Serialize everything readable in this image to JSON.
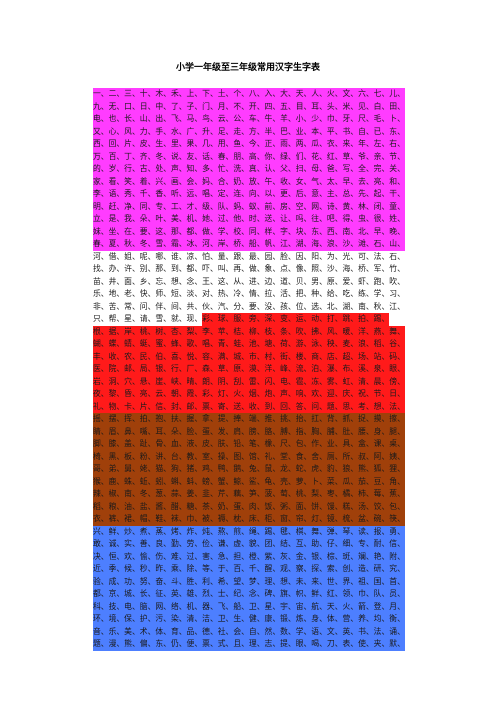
{
  "header": {
    "title": "小学一年级至三年级常用汉字生字表"
  },
  "rows": [
    [
      {
        "color": "#ff3cff",
        "text": "一、二、三、十、木、禾、上、下、土、个、八、入、大、天、人、火、文、六、七、儿、"
      }
    ],
    [
      {
        "color": "#ff3cff",
        "text": "九、无、口、日、中、了、子、门、月、不、开、四、五、目、耳、头、米、见、白、田、"
      }
    ],
    [
      {
        "color": "#ff3cff",
        "text": "电、也、长、山、出、飞、马、鸟、云、公、车、牛、羊、小、少、巾、牙、尺、毛、卜、"
      }
    ],
    [
      {
        "color": "#ff3cff",
        "text": "又、心、风、力、手、水、广、升、足、走、方、半、巴、业、本、平、书、自、已、东、"
      }
    ],
    [
      {
        "color": "#ff3cff",
        "text": "西、回、片、皮、生、里、果、几、用、鱼、今、正、雨、两、瓜、衣、来、年、左、右、"
      }
    ],
    [
      {
        "color": "#ff3cff",
        "text": "万、百、丁、齐、冬、说、友、话、春、朋、高、你、绿、们、花、红、草、爷、亲、节、"
      }
    ],
    [
      {
        "color": "#ff3cff",
        "text": "的、岁、行、古、处、声、知、多、忙、洗、真、认、父、扫、母、爸、写、全、完、关、"
      }
    ],
    [
      {
        "color": "#ff3cff",
        "text": "家、看、笑、着、兴、画、会、妈、合、奶、放、午、收、女、气、太、早、去、亮、和、"
      }
    ],
    [
      {
        "color": "#ff3cff",
        "text": "李、语、秀、千、香、听、远、唱、定、连、向、以、更、后、意、主、总、先、起、干、"
      }
    ],
    [
      {
        "color": "#ff3cff",
        "text": "明、赶、净、同、专、工、才、级、队、蚂、蚁、前、房、空、网、诗、黄、林、闭、童、"
      }
    ],
    [
      {
        "color": "#ff3cff",
        "text": "立、是、我、朵、叶、美、机、她、过、他、时、送、让、吗、往、吧、得、虫、很、姓、"
      }
    ],
    [
      {
        "color": "#ff3cff",
        "text": "妹、坐、在、要、这、那、都、做、学、校、同、样、字、块、东、西、南、北、早、晚、"
      }
    ],
    [
      {
        "color": "#ff3cff",
        "text": "春、夏、秋、冬、雪、霜、冰、河、岸、桥、船、帆、江、湖、海、浪、沙、滩、石、山、"
      }
    ],
    [
      {
        "color": "#ffffff",
        "text": "河、借、姐、呢、哪、谁、凉、怕、量、跟、最、园、脸、因、阳、为、光、可、法、石、"
      }
    ],
    [
      {
        "color": "#ffffff",
        "text": "找、办、许、别、那、到、都、吓、叫、再、做、象、点、像、照、沙、海、桥、军、竹、"
      }
    ],
    [
      {
        "color": "#ffffff",
        "text": "苗、井、面、乡、忘、想、念、王、这、从、进、边、道、贝、男、原、爱、虾、跑、吹、"
      }
    ],
    [
      {
        "color": "#ffffff",
        "text": "乐、地、老、快、师、短、淡、对、热、冷、情、拉、活、把、种、给、吃、练、学、习、"
      }
    ],
    [
      {
        "color": "#ffffff",
        "text": "非、苦、常、问、伴、间、共、伙、汽、分、要、没、孩、位、选、北、湖、南、秋、江、"
      }
    ],
    [
      {
        "color": "#ffffff",
        "text": "只、帮、星、请、雪、就、现、"
      },
      {
        "color": "#ff1a1a",
        "text": "彩、球、服、旁、深、变、运、动、打、跳、拍、踢、"
      }
    ],
    [
      {
        "color": "#ff1a1a",
        "text": "根、据、岸、桃、树、杏、梨、李、苹、桔、柳、枝、条、吹、拂、风、暖、洋、燕、舞、"
      }
    ],
    [
      {
        "color": "#ff1a1a",
        "text": "蝴、蝶、蜻、蜓、蜜、蜂、歌、唱、青、蛙、池、塘、荷、游、泳、秧、麦、浪、稻、谷、"
      }
    ],
    [
      {
        "color": "#ff1a1a",
        "text": "丰、收、农、民、伯、喜、悦、容、满、城、市、村、街、楼、商、店、超、场、站、码、"
      }
    ],
    [
      {
        "color": "#ff1a1a",
        "text": "医、院、邮、局、银、行、厂、森、草、原、漠、洋、峰、流、泊、瀑、布、溪、泉、眼、"
      }
    ],
    [
      {
        "color": "#ff1a1a",
        "text": "岩、洞、穴、悬、崖、峡、晴、朗、阴、刮、雷、闪、电、雹、冻、雾、虹、清、晨、傍、"
      }
    ],
    [
      {
        "color": "#ff1a1a",
        "text": "夜、黎、昏、亮、云、朝、霞、彩、灯、火、烟、炮、声、响、欢、迎、庆、祝、节、日、"
      }
    ],
    [
      {
        "color": "#ff1a1a",
        "text": "礼、物、卡、片、信、封、邮、票、寄、送、收、到、回、答、问、题、思、考、想、法、"
      }
    ],
    [
      {
        "color": "#a0400a",
        "text": "摇、摆、挥、拍、抱、扶、握、拿、提、捧、端、推、挑、抬、扛、背、抓、捉、摸、擦、"
      }
    ],
    [
      {
        "color": "#a0400a",
        "text": "睛、眉、鼻、嘴、耳、朵、脸、蛋、发、肩、膀、胳、膊、指、胸、脯、肚、腰、身、腿、"
      }
    ],
    [
      {
        "color": "#a0400a",
        "text": "脚、膝、盖、趾、骨、血、液、皮、肤、铅、笔、橡、尺、包、作、业、具、盒、课、桌、"
      }
    ],
    [
      {
        "color": "#a0400a",
        "text": "椅、黑、板、粉、讲、台、教、室、操、图、馆、礼、堂、食、舍、厕、所、叔、阿、姨、"
      }
    ],
    [
      {
        "color": "#a0400a",
        "text": "哥、弟、舅、姥、猫、狗、猪、鸡、鸭、鹅、兔、鼠、龙、蛇、虎、豹、狼、熊、狐、狸、"
      }
    ],
    [
      {
        "color": "#a0400a",
        "text": "猴、鹿、蛛、蚯、蚓、蝌、蚪、螃、蟹、鲸、鲨、龟、壳、萝、卜、菜、瓜、茄、豆、角、"
      }
    ],
    [
      {
        "color": "#a0400a",
        "text": "辣、椒、南、冬、葱、蒜、姜、韭、芹、藕、笋、菠、萄、桃、梨、枣、橘、柿、莓、蕉、"
      }
    ],
    [
      {
        "color": "#a0400a",
        "text": "稻、粮、油、盐、酱、醋、糖、茶、奶、蛋、肉、饭、粥、面、饼、馒、糕、汤、饺、包、"
      }
    ],
    [
      {
        "color": "#a0400a",
        "text": "衣、裤、裙、帽、鞋、袜、巾、被、褥、枕、床、柜、窗、帘、灯、镜、梳、盆、碗、筷、"
      }
    ],
    [
      {
        "color": "#4d7fff",
        "text": "兴、鲜、炒、煮、蒸、烤、炸、炖、熬、煎、绳、踢、毽、棋、舞、弹、琴、读、报、勇、"
      }
    ],
    [
      {
        "color": "#4d7fff",
        "text": "敢、诚、实、善、良、勤、劳、俭、谦、虚、貌、团、结、互、助、仔、细、专、耐、信、"
      }
    ],
    [
      {
        "color": "#4d7fff",
        "text": "决、恒、欢、愉、伤、难、过、害、急、担、橙、紫、灰、金、银、棕、斑、斓、艳、附、"
      }
    ],
    [
      {
        "color": "#4d7fff",
        "text": "近、季、候、秒、昨、乘、除、等、于、百、千、醒、观、察、探、索、创、造、研、究、"
      }
    ],
    [
      {
        "color": "#4d7fff",
        "text": "验、成、功、努、奋、斗、胜、利、希、望、梦、理、想、未、来、世、界、祖、国、首、"
      }
    ],
    [
      {
        "color": "#4d7fff",
        "text": "都、京、城、长、征、英、雄、烈、士、纪、念、碑、旗、帜、鲜、红、领、巾、队、员、"
      }
    ],
    [
      {
        "color": "#4d7fff",
        "text": "科、技、电、脑、网、络、机、器、飞、船、卫、星、宇、宙、航、天、火、箭、登、月、"
      }
    ],
    [
      {
        "color": "#4d7fff",
        "text": "环、境、保、护、污、染、清、洁、卫、生、健、康、锻、炼、身、体、营、养、均、衡、"
      }
    ],
    [
      {
        "color": "#4d7fff",
        "text": "音、乐、美、术、体、育、品、德、社、会、自、然、数、学、语、文、英、书、法、诵、"
      }
    ],
    [
      {
        "color": "#4d7fff",
        "text": "题、漫、熊、偏、东、仍、便、票、式、且、理、志、提、眼、喝、刀、表、使、夹、默、"
      }
    ]
  ]
}
